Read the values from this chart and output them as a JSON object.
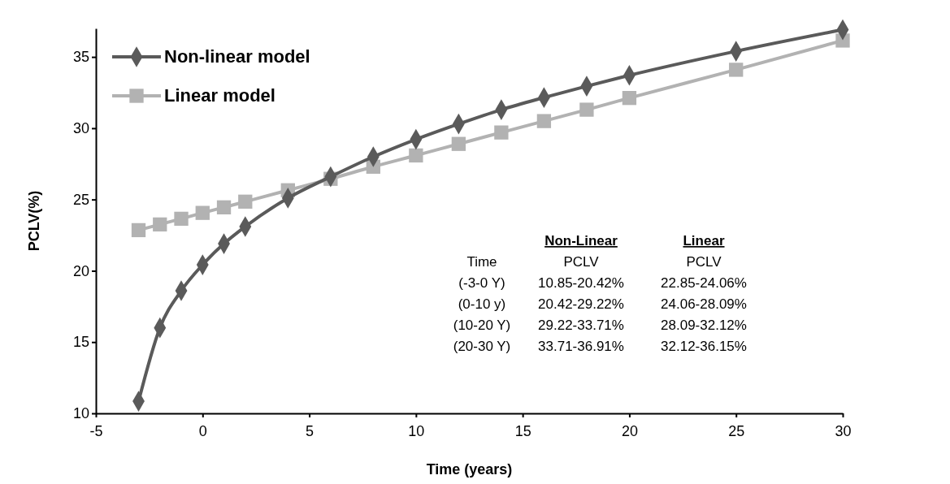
{
  "chart_data": {
    "type": "line",
    "xlabel": "Time (years)",
    "ylabel": "PCLV(%)",
    "x": [
      -3,
      -2,
      -1,
      0,
      1,
      2,
      4,
      6,
      8,
      10,
      12,
      14,
      16,
      18,
      20,
      25,
      30
    ],
    "series": [
      {
        "name": "Non-linear model",
        "color": "#5a5a5a",
        "marker": "diamond",
        "values": [
          10.85,
          16.0,
          18.6,
          20.42,
          21.9,
          23.1,
          25.1,
          26.6,
          28.0,
          29.22,
          30.3,
          31.3,
          32.15,
          32.95,
          33.71,
          35.4,
          36.91
        ]
      },
      {
        "name": "Linear model",
        "color": "#b2b2b2",
        "marker": "square",
        "values": [
          22.85,
          23.25,
          23.65,
          24.06,
          24.45,
          24.85,
          25.65,
          26.45,
          27.3,
          28.09,
          28.9,
          29.7,
          30.5,
          31.3,
          32.12,
          34.1,
          36.15
        ]
      }
    ],
    "xlim": [
      -5,
      30
    ],
    "xticks": [
      -5,
      0,
      5,
      10,
      15,
      20,
      25,
      30
    ],
    "ylim": [
      10,
      37
    ],
    "yticks": [
      10,
      15,
      20,
      25,
      30,
      35
    ],
    "grid": false,
    "legend": "top left",
    "line_style": "solid",
    "annotations": [
      "Non-Linear",
      "Linear",
      "Time",
      "PCLV",
      "PCLV",
      "(-3-0 Y)",
      "10.85-20.42%",
      "22.85-24.06%",
      "(0-10 y)",
      "20.42-29.22%",
      "24.06-28.09%",
      "(10-20 Y)",
      "29.22-33.71%",
      "28.09-32.12%",
      "(20-30 Y)",
      "33.71-36.91%",
      "32.12-36.15%"
    ]
  }
}
